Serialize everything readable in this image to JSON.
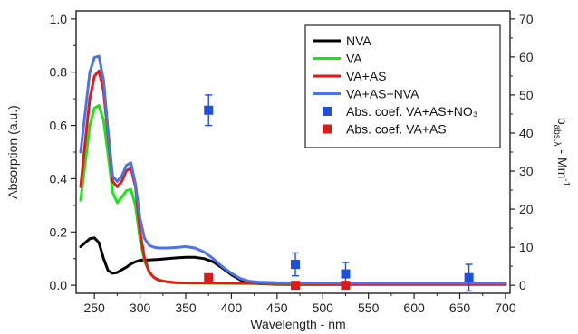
{
  "chart_data": {
    "type": "line",
    "xlabel": "Wavelength - nm",
    "ylabel": "Absorption (a.u.)",
    "y2label": {
      "main": "b",
      "sub": "abs,λ",
      "rest": " - Mm",
      "sup": "-1"
    },
    "xlim": [
      230,
      705
    ],
    "ylim": [
      -0.03,
      1.03
    ],
    "y2lim": [
      -2.1,
      72.1
    ],
    "x_ticks": [
      250,
      300,
      350,
      400,
      450,
      500,
      550,
      600,
      650,
      700
    ],
    "y_ticks": [
      0.0,
      0.2,
      0.4,
      0.6,
      0.8,
      1.0
    ],
    "y2_ticks": [
      0,
      10,
      20,
      30,
      40,
      50,
      60,
      70
    ],
    "y_tick_labels": [
      "0.0",
      "0.2",
      "0.4",
      "0.6",
      "0.8",
      "1.0"
    ],
    "legend_position": "top-right",
    "series": [
      {
        "name": "NVA",
        "color": "#000000",
        "x": [
          235,
          240,
          245,
          250,
          255,
          260,
          265,
          270,
          275,
          280,
          285,
          290,
          295,
          300,
          305,
          310,
          320,
          330,
          340,
          350,
          360,
          370,
          380,
          390,
          400,
          410,
          420,
          430,
          450,
          500,
          550,
          600,
          650,
          700
        ],
        "y": [
          0.145,
          0.16,
          0.175,
          0.178,
          0.16,
          0.1,
          0.055,
          0.045,
          0.048,
          0.058,
          0.068,
          0.08,
          0.088,
          0.094,
          0.095,
          0.095,
          0.097,
          0.1,
          0.103,
          0.105,
          0.105,
          0.1,
          0.088,
          0.065,
          0.04,
          0.02,
          0.01,
          0.006,
          0.004,
          0.003,
          0.003,
          0.003,
          0.003,
          0.003
        ]
      },
      {
        "name": "VA",
        "color": "#19e619",
        "x": [
          235,
          240,
          245,
          250,
          255,
          260,
          265,
          270,
          275,
          280,
          285,
          290,
          295,
          300,
          305,
          310,
          315,
          320,
          330,
          340,
          350,
          400,
          450,
          500,
          550,
          600,
          650,
          700
        ],
        "y": [
          0.32,
          0.46,
          0.6,
          0.665,
          0.675,
          0.62,
          0.49,
          0.35,
          0.31,
          0.33,
          0.355,
          0.36,
          0.3,
          0.17,
          0.09,
          0.05,
          0.03,
          0.02,
          0.012,
          0.009,
          0.008,
          0.007,
          0.006,
          0.005,
          0.004,
          0.004,
          0.004,
          0.004
        ]
      },
      {
        "name": "VA+AS",
        "color": "#e61919",
        "x": [
          235,
          240,
          245,
          250,
          255,
          260,
          265,
          270,
          275,
          280,
          285,
          290,
          295,
          300,
          305,
          310,
          315,
          320,
          330,
          340,
          350,
          400,
          450,
          500,
          550,
          600,
          650,
          700
        ],
        "y": [
          0.37,
          0.54,
          0.7,
          0.785,
          0.805,
          0.73,
          0.56,
          0.39,
          0.37,
          0.39,
          0.43,
          0.44,
          0.37,
          0.2,
          0.1,
          0.05,
          0.03,
          0.02,
          0.013,
          0.01,
          0.009,
          0.008,
          0.007,
          0.006,
          0.005,
          0.005,
          0.005,
          0.005
        ]
      },
      {
        "name": "VA+AS+NVA",
        "color": "#4d73e6",
        "x": [
          235,
          240,
          245,
          250,
          255,
          260,
          265,
          270,
          275,
          280,
          285,
          290,
          295,
          300,
          305,
          310,
          315,
          320,
          330,
          340,
          350,
          360,
          370,
          380,
          390,
          400,
          410,
          420,
          430,
          450,
          500,
          550,
          600,
          650,
          700
        ],
        "y": [
          0.5,
          0.65,
          0.8,
          0.855,
          0.86,
          0.77,
          0.58,
          0.41,
          0.39,
          0.41,
          0.45,
          0.46,
          0.38,
          0.25,
          0.175,
          0.15,
          0.143,
          0.14,
          0.14,
          0.142,
          0.145,
          0.14,
          0.125,
          0.1,
          0.07,
          0.045,
          0.025,
          0.015,
          0.012,
          0.01,
          0.009,
          0.008,
          0.008,
          0.008,
          0.008
        ]
      }
    ],
    "scatter_series": [
      {
        "name": "Abs. coef. VA+AS+NO₃",
        "color": "#1f4fdc",
        "axis": "right",
        "x": [
          375,
          470,
          525,
          660
        ],
        "y": [
          46,
          5.5,
          3,
          2
        ],
        "yerr": [
          4,
          3,
          3,
          3.5
        ]
      },
      {
        "name": "Abs. coef. VA+AS",
        "color": "#d81b1b",
        "axis": "right",
        "x": [
          375,
          470,
          525
        ],
        "y": [
          2,
          0,
          0
        ]
      }
    ]
  }
}
